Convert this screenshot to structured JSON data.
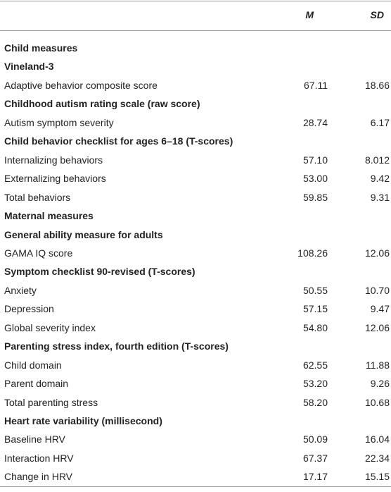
{
  "table": {
    "header": {
      "m": "M",
      "sd": "SD"
    },
    "rows": [
      {
        "section": "Child measures"
      },
      {
        "section": "Vineland-3"
      },
      {
        "label": "Adaptive behavior composite score",
        "m": "67.11",
        "sd": "18.66"
      },
      {
        "section": "Childhood autism rating scale (raw score)"
      },
      {
        "label": "Autism symptom severity",
        "m": "28.74",
        "sd": "6.17"
      },
      {
        "section": "Child behavior checklist for ages 6–18 (T-scores)"
      },
      {
        "label": "Internalizing behaviors",
        "m": "57.10",
        "sd": "8.012"
      },
      {
        "label": "Externalizing behaviors",
        "m": "53.00",
        "sd": "9.42"
      },
      {
        "label": "Total behaviors",
        "m": "59.85",
        "sd": "9.31"
      },
      {
        "section": "Maternal measures"
      },
      {
        "section": "General ability measure for adults"
      },
      {
        "label": "GAMA IQ score",
        "m": "108.26",
        "sd": "12.06"
      },
      {
        "section": "Symptom checklist 90-revised (T-scores)"
      },
      {
        "label": "Anxiety",
        "m": "50.55",
        "sd": "10.70"
      },
      {
        "label": "Depression",
        "m": "57.15",
        "sd": "9.47"
      },
      {
        "label": "Global severity index",
        "m": "54.80",
        "sd": "12.06"
      },
      {
        "section": "Parenting stress index, fourth edition (T-scores)"
      },
      {
        "label": "Child domain",
        "m": "62.55",
        "sd": "11.88"
      },
      {
        "label": "Parent domain",
        "m": "53.20",
        "sd": "9.26"
      },
      {
        "label": "Total parenting stress",
        "m": "58.20",
        "sd": "10.68"
      },
      {
        "section": "Heart rate variability (millisecond)"
      },
      {
        "label": "Baseline HRV",
        "m": "50.09",
        "sd": "16.04"
      },
      {
        "label": "Interaction HRV",
        "m": "67.37",
        "sd": "22.34"
      },
      {
        "label": "Change in HRV",
        "m": "17.17",
        "sd": "15.15"
      }
    ]
  }
}
